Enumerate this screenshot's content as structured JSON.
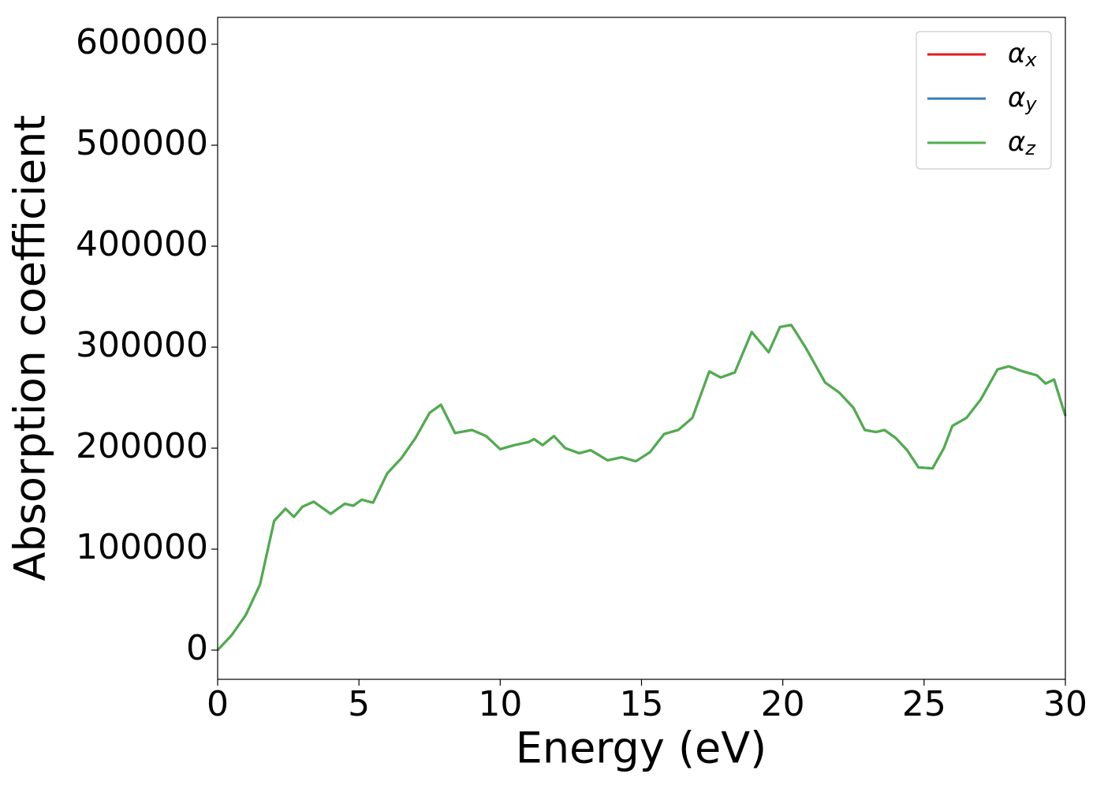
{
  "chart_data": {
    "type": "line",
    "xlabel": "Energy (eV)",
    "ylabel": "Absorption coefficient",
    "xlim": [
      0,
      30
    ],
    "ylim": [
      -28900,
      626600
    ],
    "xticks": [
      0,
      5,
      10,
      15,
      20,
      25,
      30
    ],
    "yticks": [
      0,
      100000,
      200000,
      300000,
      400000,
      500000,
      600000
    ],
    "legend": "upper right",
    "x": [
      0,
      0.5,
      1.0,
      1.5,
      2.0,
      2.4,
      2.7,
      3.0,
      3.4,
      4.0,
      4.5,
      4.8,
      5.1,
      5.5,
      6.0,
      6.5,
      7.0,
      7.5,
      7.9,
      8.4,
      9.0,
      9.5,
      10.0,
      10.5,
      11.0,
      11.2,
      11.5,
      11.9,
      12.3,
      12.8,
      13.2,
      13.8,
      14.3,
      14.8,
      15.3,
      15.8,
      16.3,
      16.8,
      17.4,
      17.8,
      18.3,
      18.9,
      19.5,
      19.9,
      20.3,
      20.8,
      21.5,
      22.0,
      22.5,
      22.9,
      23.3,
      23.6,
      24.0,
      24.4,
      24.8,
      25.3,
      25.7,
      26.0,
      26.5,
      27.0,
      27.6,
      28.0,
      28.5,
      29.0,
      29.3,
      29.6,
      30.0
    ],
    "series": [
      {
        "name": "αx",
        "color": "#e41a1c",
        "values": [
          0,
          15000,
          35000,
          65000,
          128000,
          140000,
          132000,
          142000,
          147000,
          135000,
          145000,
          143000,
          149000,
          146000,
          175000,
          190000,
          210000,
          235000,
          243000,
          215000,
          218000,
          212000,
          199000,
          203000,
          206000,
          209000,
          203000,
          212000,
          200000,
          195000,
          198000,
          188000,
          191000,
          187000,
          196000,
          214000,
          218000,
          230000,
          276000,
          270000,
          275000,
          315000,
          295000,
          320000,
          322000,
          300000,
          265000,
          255000,
          240000,
          218000,
          216000,
          218000,
          210000,
          198000,
          181000,
          180000,
          200000,
          222000,
          230000,
          248000,
          278000,
          281000,
          276000,
          272000,
          264000,
          268000,
          232000
        ]
      },
      {
        "name": "αy",
        "color": "#377eb8",
        "values": [
          0,
          15000,
          35000,
          65000,
          128000,
          140000,
          132000,
          142000,
          147000,
          135000,
          145000,
          143000,
          149000,
          146000,
          175000,
          190000,
          210000,
          235000,
          243000,
          215000,
          218000,
          212000,
          199000,
          203000,
          206000,
          209000,
          203000,
          212000,
          200000,
          195000,
          198000,
          188000,
          191000,
          187000,
          196000,
          214000,
          218000,
          230000,
          276000,
          270000,
          275000,
          315000,
          295000,
          320000,
          322000,
          300000,
          265000,
          255000,
          240000,
          218000,
          216000,
          218000,
          210000,
          198000,
          181000,
          180000,
          200000,
          222000,
          230000,
          248000,
          278000,
          281000,
          276000,
          272000,
          264000,
          268000,
          232000
        ]
      },
      {
        "name": "αz",
        "color": "#4daf4a",
        "values": [
          0,
          15000,
          35000,
          65000,
          128000,
          140000,
          132000,
          142000,
          147000,
          135000,
          145000,
          143000,
          149000,
          146000,
          175000,
          190000,
          210000,
          235000,
          243000,
          215000,
          218000,
          212000,
          199000,
          203000,
          206000,
          209000,
          203000,
          212000,
          200000,
          195000,
          198000,
          188000,
          191000,
          187000,
          196000,
          214000,
          218000,
          230000,
          276000,
          270000,
          275000,
          315000,
          295000,
          320000,
          322000,
          300000,
          265000,
          255000,
          240000,
          218000,
          216000,
          218000,
          210000,
          198000,
          181000,
          180000,
          200000,
          222000,
          230000,
          248000,
          278000,
          281000,
          276000,
          272000,
          264000,
          268000,
          232000
        ]
      }
    ]
  }
}
